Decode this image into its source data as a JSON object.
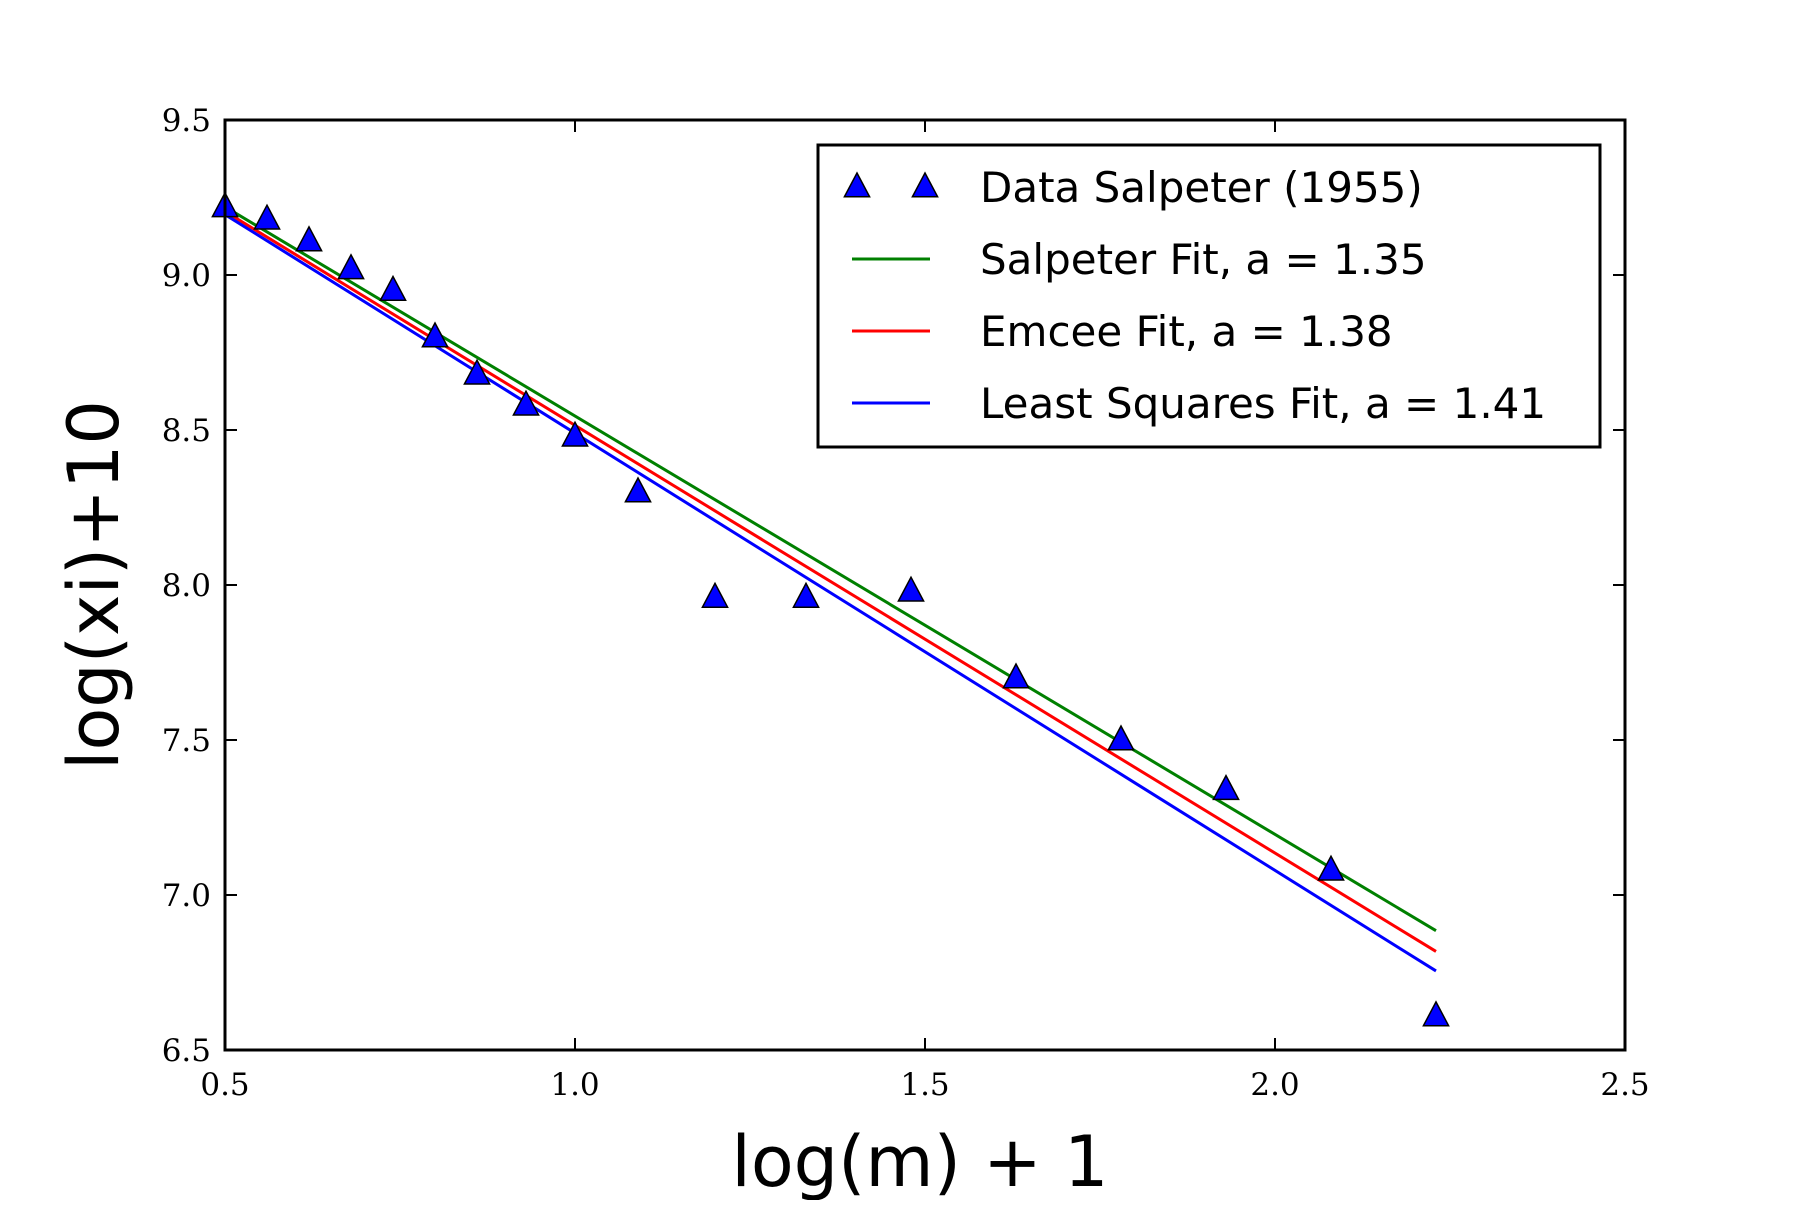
{
  "chart_data": {
    "type": "scatter",
    "title": "",
    "xlabel": "log(m) + 1",
    "ylabel": "log(xi)+10",
    "xlim": [
      0.5,
      2.5
    ],
    "ylim": [
      6.5,
      9.5
    ],
    "xticks": [
      0.5,
      1.0,
      1.5,
      2.0,
      2.5
    ],
    "xtick_labels": [
      "0.5",
      "1.0",
      "1.5",
      "2.0",
      "2.5"
    ],
    "yticks": [
      6.5,
      7.0,
      7.5,
      8.0,
      8.5,
      9.0,
      9.5
    ],
    "ytick_labels": [
      "6.5",
      "7.0",
      "7.5",
      "8.0",
      "8.5",
      "9.0",
      "9.5"
    ],
    "grid": false,
    "legend_position": "top-right",
    "series": [
      {
        "name": "Data Salpeter (1955)",
        "kind": "scatter",
        "marker": "triangle",
        "color": "#0000ff",
        "x": [
          0.5,
          0.56,
          0.62,
          0.68,
          0.74,
          0.8,
          0.86,
          0.93,
          1.0,
          1.09,
          1.2,
          1.33,
          1.48,
          1.63,
          1.78,
          1.93,
          2.08,
          2.23
        ],
        "y": [
          9.22,
          9.18,
          9.11,
          9.02,
          8.95,
          8.8,
          8.68,
          8.58,
          8.48,
          8.3,
          7.96,
          7.96,
          7.98,
          7.7,
          7.5,
          7.34,
          7.08,
          6.61
        ]
      },
      {
        "name": "Salpeter Fit, a = 1.35",
        "kind": "line",
        "color": "#008000",
        "x": [
          0.5,
          2.23
        ],
        "y": [
          9.22,
          6.885
        ]
      },
      {
        "name": "Emcee Fit, a = 1.38",
        "kind": "line",
        "color": "#ff0000",
        "x": [
          0.5,
          2.23
        ],
        "y": [
          9.205,
          6.818
        ]
      },
      {
        "name": "Least Squares Fit, a = 1.41",
        "kind": "line",
        "color": "#0000ff",
        "x": [
          0.5,
          2.23
        ],
        "y": [
          9.195,
          6.755
        ]
      }
    ]
  }
}
